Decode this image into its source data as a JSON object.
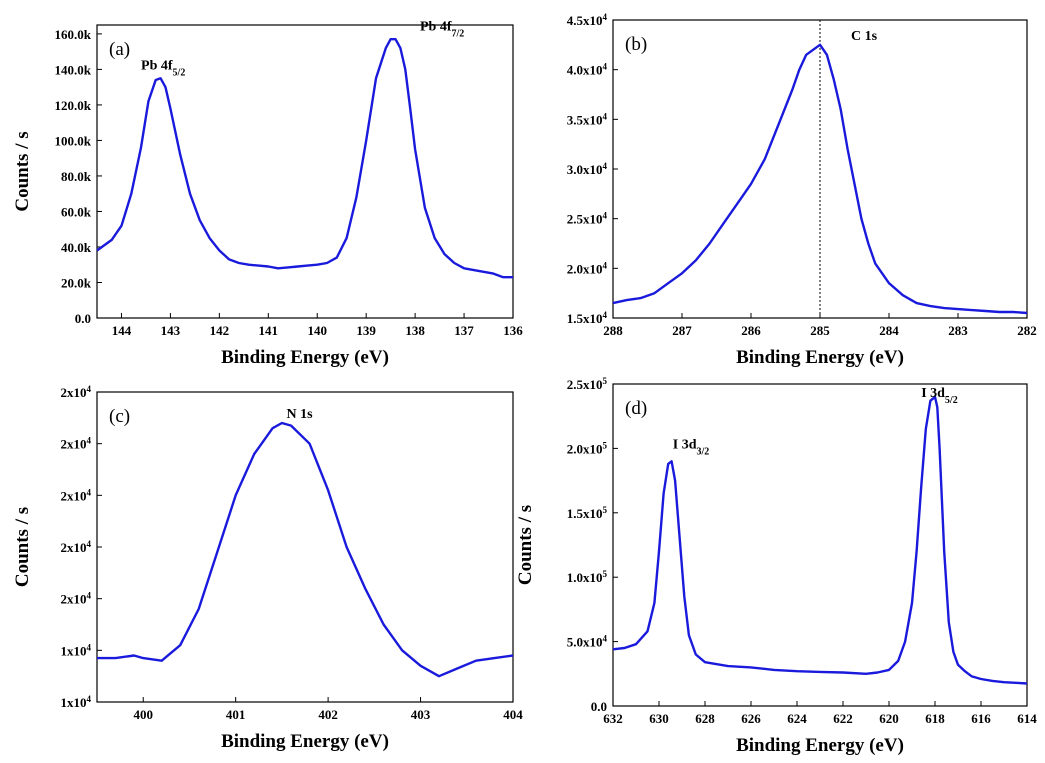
{
  "chart_data": [
    {
      "type": "line",
      "panel_label": "(a)",
      "xlabel": "Binding Energy (eV)",
      "ylabel": "Counts / s",
      "xlim": [
        144.5,
        136
      ],
      "ylim": [
        0,
        165000
      ],
      "x_ticks": [
        144,
        143,
        142,
        141,
        140,
        139,
        138,
        137,
        136
      ],
      "y_ticks": [
        {
          "value": 0,
          "label": "0.0"
        },
        {
          "value": 20000,
          "label": "20.0k"
        },
        {
          "value": 40000,
          "label": "40.0k"
        },
        {
          "value": 60000,
          "label": "60.0k"
        },
        {
          "value": 80000,
          "label": "80.0k"
        },
        {
          "value": 100000,
          "label": "100.0k"
        },
        {
          "value": 120000,
          "label": "120.0k"
        },
        {
          "value": 140000,
          "label": "140.0k"
        },
        {
          "value": 160000,
          "label": "160.0k"
        }
      ],
      "annotations": [
        {
          "main": "Pb 4f",
          "sub": "5/2",
          "x": 143.6,
          "y": 140000
        },
        {
          "main": "Pb 4f",
          "sub": "7/2",
          "x": 137.9,
          "y": 162000
        }
      ],
      "series": [
        {
          "x": [
            144.5,
            144.2,
            144.0,
            143.8,
            143.6,
            143.45,
            143.3,
            143.2,
            143.1,
            143.0,
            142.8,
            142.6,
            142.4,
            142.2,
            142.0,
            141.8,
            141.6,
            141.4,
            141.2,
            141.0,
            140.8,
            140.6,
            140.4,
            140.2,
            140.0,
            139.8,
            139.6,
            139.4,
            139.2,
            139.0,
            138.8,
            138.6,
            138.5,
            138.4,
            138.3,
            138.2,
            138.1,
            138.0,
            137.8,
            137.6,
            137.4,
            137.2,
            137.0,
            136.8,
            136.6,
            136.4,
            136.2,
            136.0
          ],
          "y": [
            38000,
            44000,
            52000,
            70000,
            96000,
            122000,
            134000,
            135000,
            130000,
            118000,
            92000,
            70000,
            55000,
            45000,
            38000,
            33000,
            31000,
            30000,
            29500,
            29000,
            28000,
            28500,
            29000,
            29500,
            30000,
            31000,
            34000,
            45000,
            68000,
            100000,
            135000,
            152000,
            157000,
            157000,
            152000,
            140000,
            118000,
            95000,
            62000,
            45000,
            36000,
            31000,
            28000,
            27000,
            26000,
            25000,
            23000,
            23000
          ]
        }
      ]
    },
    {
      "type": "line",
      "panel_label": "(b)",
      "xlabel": "Binding Energy (eV)",
      "ylabel": "",
      "xlim": [
        288,
        282
      ],
      "ylim": [
        15000,
        45000
      ],
      "x_ticks": [
        288,
        287,
        286,
        285,
        284,
        283,
        282
      ],
      "y_ticks": [
        {
          "value": 15000,
          "label": "1.5x10",
          "exp": "4"
        },
        {
          "value": 20000,
          "label": "2.0x10",
          "exp": "4"
        },
        {
          "value": 25000,
          "label": "2.5x10",
          "exp": "4"
        },
        {
          "value": 30000,
          "label": "3.0x10",
          "exp": "4"
        },
        {
          "value": 35000,
          "label": "3.5x10",
          "exp": "4"
        },
        {
          "value": 40000,
          "label": "4.0x10",
          "exp": "4"
        },
        {
          "value": 45000,
          "label": "4.5x10",
          "exp": "4"
        }
      ],
      "reference_line_x": 285.0,
      "annotations": [
        {
          "main": "C 1s",
          "sub": "",
          "x": 284.55,
          "y": 43000
        }
      ],
      "series": [
        {
          "x": [
            288.0,
            287.8,
            287.6,
            287.4,
            287.2,
            287.0,
            286.8,
            286.6,
            286.4,
            286.2,
            286.0,
            285.8,
            285.6,
            285.4,
            285.3,
            285.2,
            285.1,
            285.0,
            284.9,
            284.8,
            284.7,
            284.6,
            284.5,
            284.4,
            284.3,
            284.2,
            284.0,
            283.8,
            283.6,
            283.4,
            283.2,
            283.0,
            282.8,
            282.6,
            282.4,
            282.2,
            282.0
          ],
          "y": [
            16500,
            16800,
            17000,
            17500,
            18500,
            19500,
            20800,
            22500,
            24500,
            26500,
            28500,
            31000,
            34500,
            38000,
            40000,
            41500,
            42000,
            42500,
            41500,
            39000,
            36000,
            32000,
            28500,
            25000,
            22500,
            20500,
            18500,
            17300,
            16500,
            16200,
            16000,
            15900,
            15800,
            15700,
            15600,
            15600,
            15500
          ]
        }
      ]
    },
    {
      "type": "line",
      "panel_label": "(c)",
      "xlabel": "Binding Energy (eV)",
      "ylabel": "Counts / s",
      "xlim": [
        399.5,
        404
      ],
      "ylim": [
        0,
        6
      ],
      "x_ticks": [
        400,
        401,
        402,
        403,
        404
      ],
      "y_ticks": [
        {
          "value": 0,
          "label": "1x10",
          "exp": "4"
        },
        {
          "value": 1,
          "label": "1x10",
          "exp": "4"
        },
        {
          "value": 2,
          "label": "2x10",
          "exp": "4"
        },
        {
          "value": 3,
          "label": "2x10",
          "exp": "4"
        },
        {
          "value": 4,
          "label": "2x10",
          "exp": "4"
        },
        {
          "value": 5,
          "label": "2x10",
          "exp": "4"
        },
        {
          "value": 6,
          "label": "2x10",
          "exp": "4"
        }
      ],
      "annotations": [
        {
          "main": "N 1s",
          "sub": "",
          "x": 401.55,
          "y": 5.5
        }
      ],
      "series": [
        {
          "x": [
            399.5,
            399.7,
            399.9,
            400.0,
            400.2,
            400.4,
            400.6,
            400.8,
            401.0,
            401.2,
            401.4,
            401.5,
            401.6,
            401.8,
            402.0,
            402.2,
            402.4,
            402.6,
            402.8,
            403.0,
            403.2,
            403.4,
            403.6,
            403.8,
            404.0
          ],
          "y": [
            0.85,
            0.85,
            0.9,
            0.85,
            0.8,
            1.1,
            1.8,
            2.9,
            4.0,
            4.8,
            5.3,
            5.4,
            5.35,
            5.0,
            4.1,
            3.0,
            2.2,
            1.5,
            1.0,
            0.7,
            0.5,
            0.65,
            0.8,
            0.85,
            0.9
          ]
        }
      ]
    },
    {
      "type": "line",
      "panel_label": "(d)",
      "xlabel": "Binding Energy (eV)",
      "ylabel": "Counts / s",
      "xlim": [
        632,
        614
      ],
      "ylim": [
        0,
        250000
      ],
      "x_ticks": [
        632,
        630,
        628,
        626,
        624,
        622,
        620,
        618,
        616,
        614
      ],
      "y_ticks": [
        {
          "value": 0,
          "label": "0.0"
        },
        {
          "value": 50000,
          "label": "5.0x10",
          "exp": "4"
        },
        {
          "value": 100000,
          "label": "1.0x10",
          "exp": "5"
        },
        {
          "value": 150000,
          "label": "1.5x10",
          "exp": "5"
        },
        {
          "value": 200000,
          "label": "2.0x10",
          "exp": "5"
        },
        {
          "value": 250000,
          "label": "2.5x10",
          "exp": "5"
        }
      ],
      "annotations": [
        {
          "main": "I 3d",
          "sub": "3/2",
          "x": 629.4,
          "y": 200000
        },
        {
          "main": "I 3d",
          "sub": "5/2",
          "x": 618.6,
          "y": 240000
        }
      ],
      "series": [
        {
          "x": [
            632.0,
            631.5,
            631.0,
            630.5,
            630.2,
            630.0,
            629.8,
            629.6,
            629.45,
            629.3,
            629.1,
            628.9,
            628.7,
            628.4,
            628.0,
            627.0,
            626.0,
            625.0,
            624.0,
            623.0,
            622.0,
            621.0,
            620.5,
            620.0,
            619.6,
            619.3,
            619.0,
            618.8,
            618.6,
            618.4,
            618.2,
            618.0,
            617.9,
            617.8,
            617.6,
            617.4,
            617.2,
            617.0,
            616.7,
            616.4,
            616.0,
            615.5,
            615.0,
            614.5,
            614.0
          ],
          "y": [
            44000,
            45000,
            48000,
            58000,
            80000,
            120000,
            165000,
            188000,
            190000,
            175000,
            130000,
            85000,
            55000,
            40000,
            34000,
            31000,
            30000,
            28000,
            27000,
            26500,
            26000,
            25000,
            26000,
            28000,
            35000,
            50000,
            80000,
            120000,
            170000,
            215000,
            237000,
            240000,
            232000,
            200000,
            120000,
            65000,
            42000,
            32000,
            27000,
            23000,
            21000,
            19500,
            18500,
            18000,
            17500
          ]
        }
      ]
    }
  ]
}
